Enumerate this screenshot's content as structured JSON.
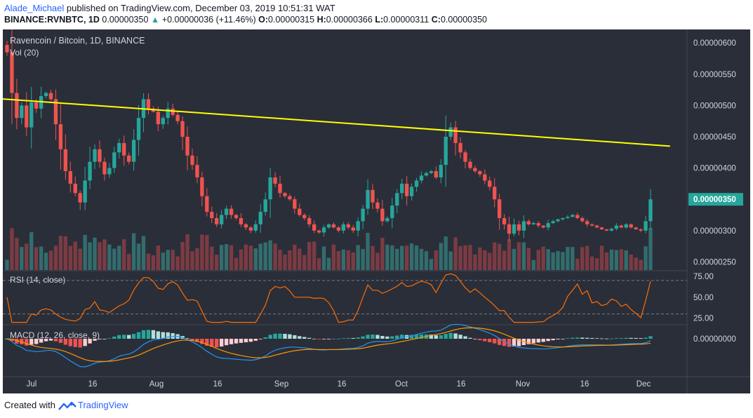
{
  "header": {
    "author": "Alade_Michael",
    "published_text": "published on TradingView.com, December 03, 2019 10:51:31 WAT",
    "symbol": "BINANCE:RVNBTC, 1D",
    "price": "0.00000350",
    "change_icon": "up-triangle-icon",
    "change": "+0.00000036 (+11.46%)",
    "o_label": "O:",
    "o_value": "0.00000315",
    "h_label": "H:",
    "h_value": "0.00000366",
    "l_label": "L:",
    "l_value": "0.00000311",
    "c_label": "C:",
    "c_value": "0.00000350"
  },
  "footer": {
    "created_with": "Created with",
    "brand": "TradingView",
    "logo_icon": "tradingview-logo-icon"
  },
  "colors": {
    "bg": "#2a2e39",
    "up": "#26a69a",
    "down": "#ef5350",
    "vol_up": "#336d6d",
    "vol_down": "#7c3b43",
    "trendline": "#ffff00",
    "rsi": "#ff6d00",
    "macd": "#2196f3",
    "signal": "#ff9800",
    "price_label_bg": "#26a69a"
  },
  "chart_data": {
    "type": "candlestick",
    "title": "Ravencoin / Bitcoin, 1D, BINANCE",
    "volume_label": "Vol (20)",
    "price_axis": {
      "ticks": [
        "0.00000600",
        "0.00000550",
        "0.00000500",
        "0.00000450",
        "0.00000400",
        "0.00000350",
        "0.00000300",
        "0.00000250"
      ],
      "range": [
        2.37e-06,
        6.17e-06
      ]
    },
    "last_price_label": "0.00000350",
    "time_axis": [
      "Jul",
      "16",
      "Aug",
      "16",
      "Sep",
      "16",
      "Oct",
      "16",
      "Nov",
      "16",
      "Dec"
    ],
    "close_series": [
      5.85,
      5.2,
      4.8,
      5.0,
      4.65,
      5.05,
      4.95,
      5.15,
      5.2,
      5.1,
      4.7,
      4.3,
      3.95,
      3.75,
      3.6,
      3.45,
      3.8,
      4.1,
      4.3,
      4.1,
      3.9,
      4.0,
      4.25,
      4.4,
      4.2,
      4.1,
      4.45,
      4.8,
      5.1,
      4.95,
      4.9,
      4.7,
      4.8,
      4.95,
      4.85,
      4.75,
      4.5,
      4.2,
      4.05,
      3.85,
      3.55,
      3.3,
      3.2,
      3.1,
      3.25,
      3.35,
      3.25,
      3.2,
      3.1,
      3.05,
      3.0,
      3.1,
      3.3,
      3.5,
      3.85,
      3.75,
      3.6,
      3.55,
      3.5,
      3.35,
      3.25,
      3.2,
      3.1,
      3.0,
      2.97,
      3.05,
      3.1,
      3.05,
      3.0,
      3.1,
      3.05,
      3.0,
      3.15,
      3.35,
      3.65,
      3.45,
      3.35,
      3.15,
      3.2,
      3.4,
      3.6,
      3.75,
      3.55,
      3.7,
      3.8,
      3.88,
      3.92,
      3.95,
      3.85,
      4.05,
      4.5,
      4.65,
      4.4,
      4.25,
      4.1,
      4.0,
      3.95,
      3.9,
      3.8,
      3.7,
      3.5,
      3.2,
      3.1,
      2.95,
      3.1,
      3.0,
      3.15,
      3.1,
      3.12,
      3.08,
      3.05,
      3.12,
      3.15,
      3.18,
      3.2,
      3.22,
      3.25,
      3.2,
      3.15,
      3.1,
      3.08,
      3.05,
      3.02,
      3.0,
      3.03,
      3.08,
      3.05,
      3.1,
      3.05,
      3.02,
      3.0,
      3.15,
      3.5
    ],
    "trendline": {
      "from": {
        "date": "2019-06-23",
        "price": 5.27e-06
      },
      "to": {
        "date": "2019-12-07",
        "price": 4.35e-06
      }
    },
    "indicators": [
      {
        "name": "RSI (14, close)",
        "ticks": [
          "75.00",
          "50.00",
          "25.00"
        ],
        "range": [
          18,
          80
        ],
        "bands": [
          70,
          30
        ]
      },
      {
        "name": "MACD (12, 26, close, 9)",
        "ticks": [
          "0.00000000"
        ]
      }
    ]
  }
}
